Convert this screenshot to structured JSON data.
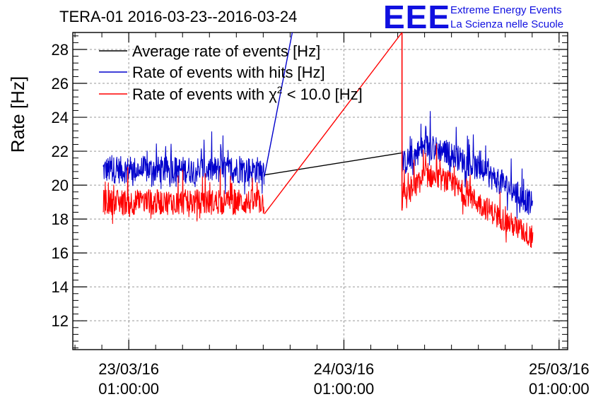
{
  "logo": {
    "mark": "EEE",
    "line1": "Extreme Energy Events",
    "line2": "La Scienza nelle Scuole"
  },
  "chart_data": {
    "type": "line",
    "title": "TERA-01 2016-03-23--2016-03-24",
    "xlabel": "",
    "ylabel": "Rate [Hz]",
    "xlim": [
      -0.26,
      2.04
    ],
    "ylim": [
      10.3,
      29.0
    ],
    "x_unit": "days since 23/03/16 01:00:00",
    "yticks": [
      12,
      14,
      16,
      18,
      20,
      22,
      24,
      26,
      28
    ],
    "xticks": [
      {
        "x": 0,
        "label": [
          "23/03/16",
          "01:00:00"
        ]
      },
      {
        "x": 1,
        "label": [
          "24/03/16",
          "01:00:00"
        ]
      },
      {
        "x": 2,
        "label": [
          "25/03/16",
          "01:00:00"
        ]
      }
    ],
    "grid": true,
    "legend_position": "top-left",
    "series": [
      {
        "name": "Average rate of events [Hz]",
        "color": "#000000",
        "x": [
          0.63,
          1.27
        ],
        "y": [
          20.6,
          21.9
        ]
      },
      {
        "name": "Rate of events with hits [Hz]",
        "color": "#0000cc",
        "segments": [
          {
            "x_start": -0.12,
            "x_end": 0.63,
            "mean": 20.9,
            "noise": 0.8,
            "spike": 1.4
          },
          {
            "x_start": 1.27,
            "x_end": 1.88,
            "profile": [
              [
                1.27,
                21.2
              ],
              [
                1.38,
                22.3
              ],
              [
                1.47,
                22.0
              ],
              [
                1.62,
                21.0
              ],
              [
                1.75,
                20.0
              ],
              [
                1.88,
                18.8
              ]
            ],
            "noise": 0.75,
            "spike": 1.5
          }
        ],
        "connector": {
          "x": [
            0.63,
            0.76
          ],
          "y": [
            20.5,
            29.0
          ]
        }
      },
      {
        "name": "Rate of events with χ² < 10.0 [Hz]",
        "color": "#ff0000",
        "segments": [
          {
            "x_start": -0.12,
            "x_end": 0.63,
            "mean": 19.0,
            "noise": 0.75,
            "spike": 1.3
          },
          {
            "x_start": 1.27,
            "x_end": 1.88,
            "profile": [
              [
                1.27,
                19.0
              ],
              [
                1.38,
                20.6
              ],
              [
                1.47,
                20.3
              ],
              [
                1.62,
                19.0
              ],
              [
                1.75,
                17.9
              ],
              [
                1.88,
                16.9
              ]
            ],
            "noise": 0.7,
            "spike": 1.3
          }
        ],
        "connector": {
          "x": [
            0.63,
            1.27
          ],
          "y": [
            18.3,
            29.0
          ]
        },
        "jump": {
          "x": 1.27,
          "y": [
            29.0,
            18.5
          ]
        }
      }
    ],
    "legend": {
      "average": "Average rate of events [Hz]",
      "hits": "Rate of events with hits [Hz]",
      "chi_prefix": "Rate of events with ",
      "chi_symbol": "χ",
      "chi_sup": "2",
      "chi_suffix": " < 10.0 [Hz]"
    }
  }
}
